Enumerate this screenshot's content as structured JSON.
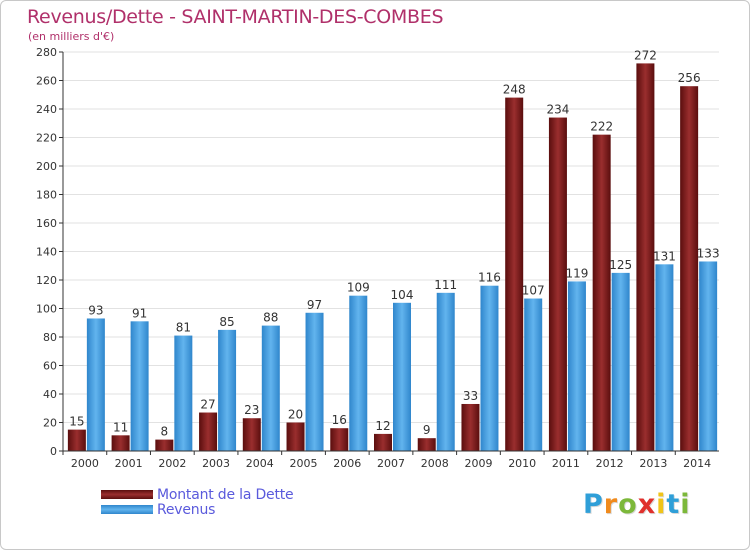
{
  "title": "Revenus/Dette - SAINT-MARTIN-DES-COMBES",
  "subtitle": "(en milliers d'€)",
  "logo": {
    "text": "Proxiti",
    "letters": [
      {
        "ch": "P",
        "color": "#2f9fd8"
      },
      {
        "ch": "r",
        "color": "#f08a1c"
      },
      {
        "ch": "o",
        "color": "#7cb83a"
      },
      {
        "ch": "x",
        "color": "#e0302c"
      },
      {
        "ch": "i",
        "color": "#f0c419"
      },
      {
        "ch": "t",
        "color": "#2f9fd8"
      },
      {
        "ch": "i",
        "color": "#7cb83a"
      }
    ]
  },
  "chart_data": {
    "type": "bar",
    "title": "Revenus/Dette - SAINT-MARTIN-DES-COMBES",
    "ylabel": "(en milliers d'€)",
    "categories": [
      "2000",
      "2001",
      "2002",
      "2003",
      "2004",
      "2005",
      "2006",
      "2007",
      "2008",
      "2009",
      "2010",
      "2011",
      "2012",
      "2013",
      "2014"
    ],
    "series": [
      {
        "name": "Montant de la Dette",
        "color": "#7a1a1a",
        "values": [
          15,
          11,
          8,
          27,
          23,
          20,
          16,
          12,
          9,
          33,
          248,
          234,
          222,
          272,
          256
        ]
      },
      {
        "name": "Revenus",
        "color": "#4a9fe0",
        "values": [
          93,
          91,
          81,
          85,
          88,
          97,
          109,
          104,
          111,
          116,
          107,
          119,
          125,
          131,
          133
        ]
      }
    ],
    "ylim": [
      0,
      280
    ],
    "yticks": [
      0,
      20,
      40,
      60,
      80,
      100,
      120,
      140,
      160,
      180,
      200,
      220,
      240,
      260,
      280
    ],
    "grid": true,
    "legend": "bottom-left"
  }
}
